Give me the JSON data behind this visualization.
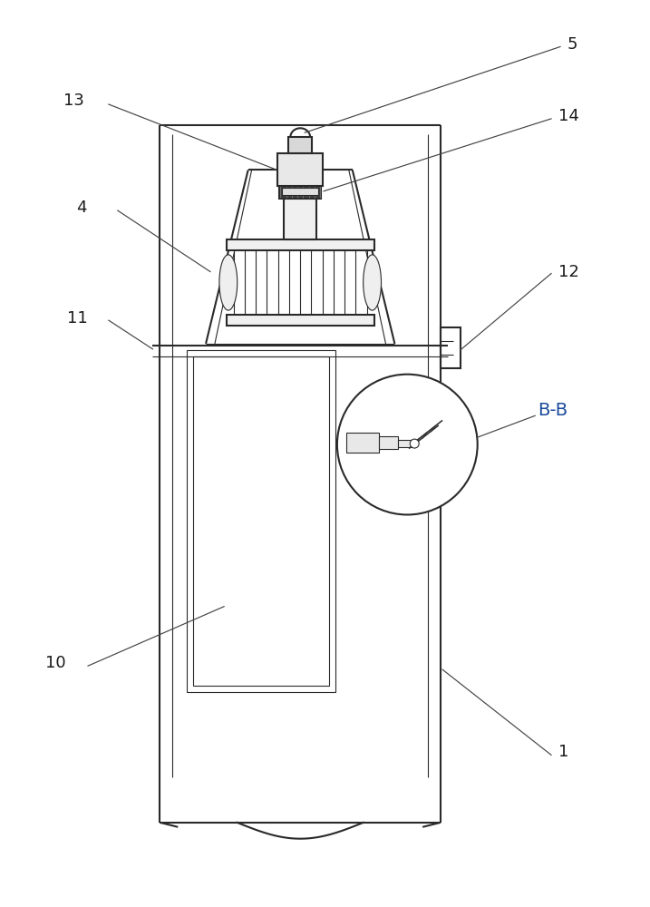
{
  "bg_color": "#ffffff",
  "lc": "#2a2a2a",
  "lw_main": 1.5,
  "lw_thin": 0.8,
  "lw_med": 1.1,
  "label_fs": 13,
  "label_color": "#1a1a1a",
  "bb_color": "#1a4a9a",
  "anno_lc": "#444444",
  "anno_lw": 0.85
}
